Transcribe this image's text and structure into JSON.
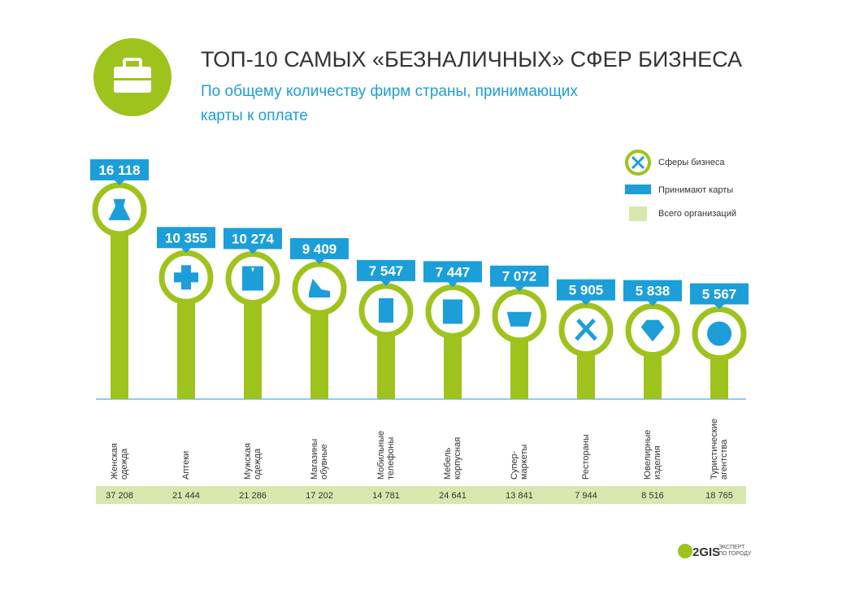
{
  "chart_data": {
    "type": "bar",
    "title": "ТОП-10 САМЫХ «БЕЗНАЛИЧНЫХ» СФЕР БИЗНЕСА",
    "subtitle": "По общему количеству фирм страны, принимающих\nкарты к оплате",
    "legend_categories": "Сферы бизнеса",
    "categories": [
      "Женская\nодежда",
      "Аптеки",
      "Мужская\nодежда",
      "Магазины\nобувные",
      "Мобильные\nтелефоны",
      "Мебель\nкорпусная",
      "Супер-\nмаркеты",
      "Рестораны",
      "Ювелирные\nизделия",
      "Туристические\nагентства"
    ],
    "series": [
      {
        "name": "Принимают карты",
        "color": "#1c9ed9",
        "values": [
          16118,
          10355,
          10274,
          9409,
          7547,
          7447,
          7072,
          5905,
          5838,
          5567
        ],
        "value_labels": [
          "16 118",
          "10 355",
          "10 274",
          "9 409",
          "7 547",
          "7 447",
          "7 072",
          "5 905",
          "5 838",
          "5 567"
        ]
      },
      {
        "name": "Всего организаций",
        "color": "#d8e7ae",
        "values": [
          37208,
          21444,
          21286,
          17202,
          14781,
          24641,
          13841,
          7944,
          8516,
          18765
        ],
        "value_labels": [
          "37 208",
          "21 444",
          "21 286",
          "17 202",
          "14 781",
          "24 641",
          "13 841",
          "7 944",
          "8 516",
          "18 765"
        ]
      }
    ],
    "bar_color": "#9fc31d"
  },
  "logo": {
    "name": "2GIS",
    "tagline": "ЭКСПЕРТ\nПО ГОРОДУ"
  }
}
